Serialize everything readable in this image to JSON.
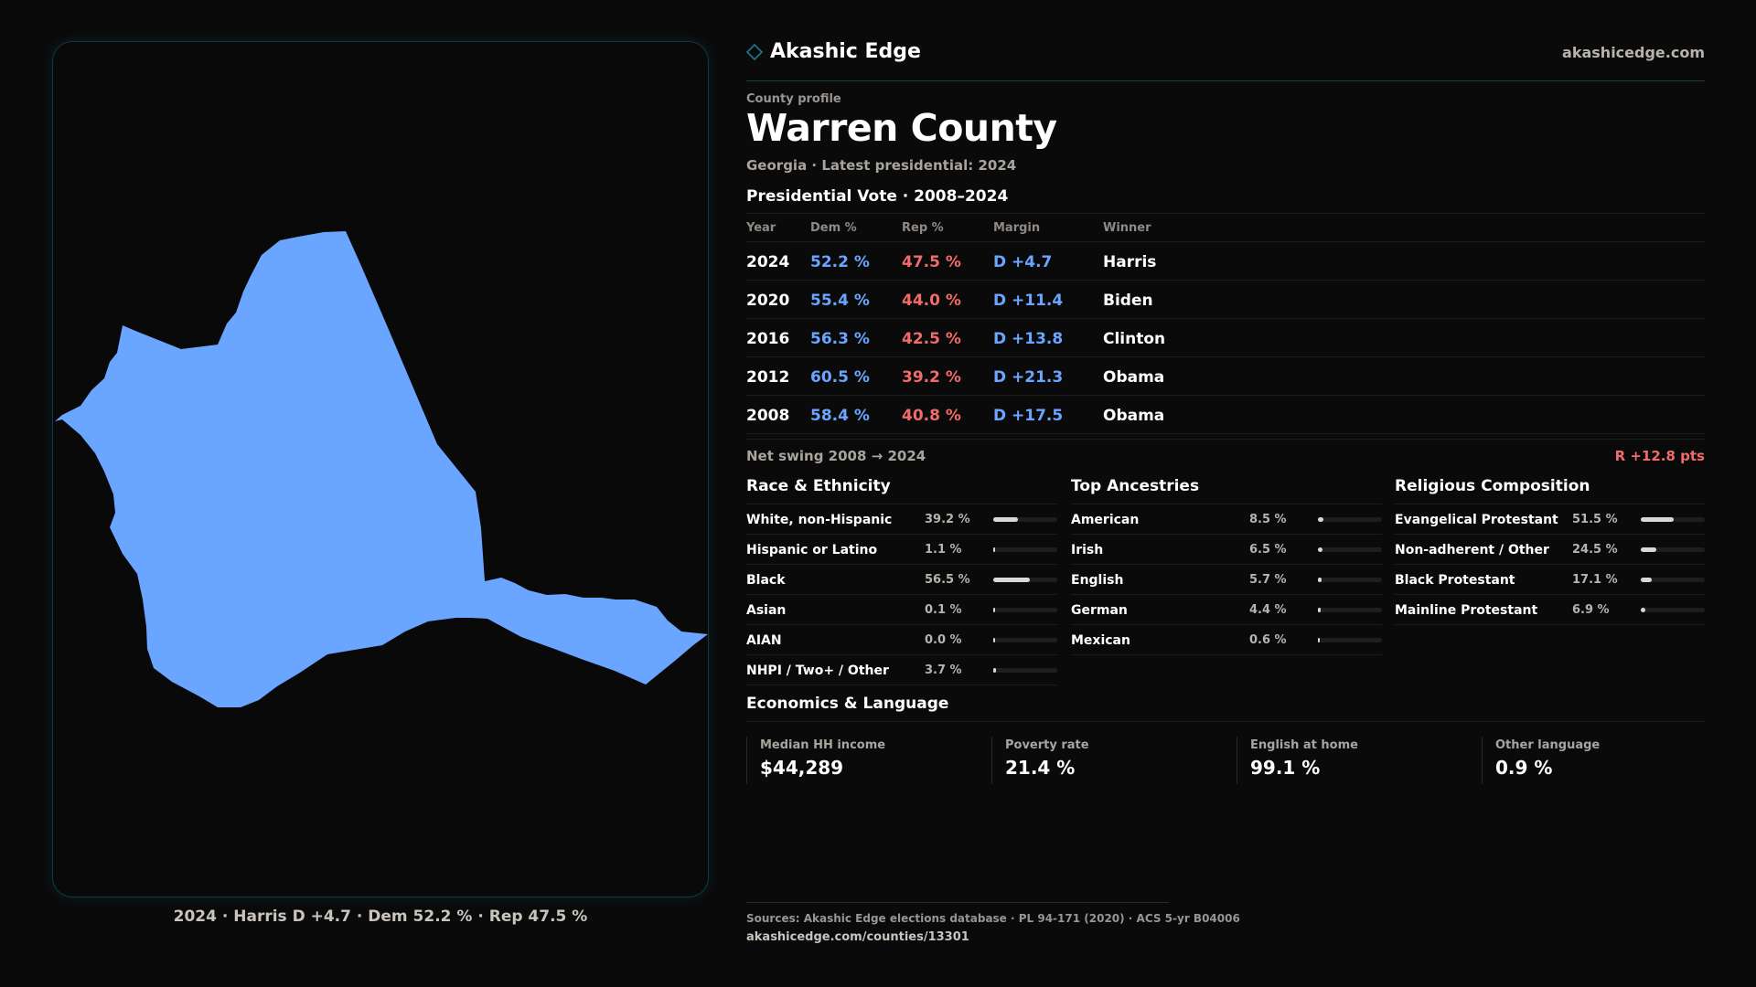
{
  "brand": {
    "name": "Akashic Edge",
    "site": "akashicedge.com",
    "icon": "diamond-outline-icon",
    "accent": "#1c7a8c"
  },
  "profile": {
    "kicker": "County profile",
    "title": "Warren County",
    "subline": "Georgia · Latest presidential: 2024"
  },
  "map": {
    "caption": "2024 · Harris D +4.7 · Dem 52.2 % · Rep 47.5 %",
    "fill_color": "#6aa6ff"
  },
  "vote": {
    "section_title": "Presidential Vote · 2008–2024",
    "headers": {
      "year": "Year",
      "dem": "Dem %",
      "rep": "Rep %",
      "margin": "Margin",
      "winner": "Winner"
    },
    "rows": [
      {
        "year": "2024",
        "dem": "52.2 %",
        "rep": "47.5 %",
        "margin": "D +4.7",
        "winner": "Harris"
      },
      {
        "year": "2020",
        "dem": "55.4 %",
        "rep": "44.0 %",
        "margin": "D +11.4",
        "winner": "Biden"
      },
      {
        "year": "2016",
        "dem": "56.3 %",
        "rep": "42.5 %",
        "margin": "D +13.8",
        "winner": "Clinton"
      },
      {
        "year": "2012",
        "dem": "60.5 %",
        "rep": "39.2 %",
        "margin": "D +21.3",
        "winner": "Obama"
      },
      {
        "year": "2008",
        "dem": "58.4 %",
        "rep": "40.8 %",
        "margin": "D +17.5",
        "winner": "Obama"
      }
    ],
    "swing_label": "Net swing 2008 → 2024",
    "swing_value": "R +12.8 pts",
    "colors": {
      "dem": "#6aa6ff",
      "rep": "#f26b6b"
    }
  },
  "race": {
    "title": "Race & Ethnicity",
    "rows": [
      {
        "label": "White, non-Hispanic",
        "pct": "39.2 %",
        "value": 39.2
      },
      {
        "label": "Hispanic or Latino",
        "pct": "1.1 %",
        "value": 1.1
      },
      {
        "label": "Black",
        "pct": "56.5 %",
        "value": 56.5
      },
      {
        "label": "Asian",
        "pct": "0.1 %",
        "value": 0.1
      },
      {
        "label": "AIAN",
        "pct": "0.0 %",
        "value": 0.0
      },
      {
        "label": "NHPI / Two+ / Other",
        "pct": "3.7 %",
        "value": 3.7
      }
    ]
  },
  "ancestry": {
    "title": "Top Ancestries",
    "rows": [
      {
        "label": "American",
        "pct": "8.5 %",
        "value": 8.5
      },
      {
        "label": "Irish",
        "pct": "6.5 %",
        "value": 6.5
      },
      {
        "label": "English",
        "pct": "5.7 %",
        "value": 5.7
      },
      {
        "label": "German",
        "pct": "4.4 %",
        "value": 4.4
      },
      {
        "label": "Mexican",
        "pct": "0.6 %",
        "value": 0.6
      }
    ]
  },
  "religion": {
    "title": "Religious Composition",
    "rows": [
      {
        "label": "Evangelical Protestant",
        "pct": "51.5 %",
        "value": 51.5
      },
      {
        "label": "Non-adherent / Other",
        "pct": "24.5 %",
        "value": 24.5
      },
      {
        "label": "Black Protestant",
        "pct": "17.1 %",
        "value": 17.1
      },
      {
        "label": "Mainline Protestant",
        "pct": "6.9 %",
        "value": 6.9
      }
    ]
  },
  "economics": {
    "title": "Economics & Language",
    "stats": [
      {
        "label": "Median HH income",
        "value": "$44,289"
      },
      {
        "label": "Poverty rate",
        "value": "21.4 %"
      },
      {
        "label": "English at home",
        "value": "99.1 %"
      },
      {
        "label": "Other language",
        "value": "0.9 %"
      }
    ]
  },
  "footer": {
    "sources": "Sources: Akashic Edge elections database · PL 94-171 (2020) · ACS 5-yr B04006",
    "url": "akashicedge.com/counties/13301"
  }
}
